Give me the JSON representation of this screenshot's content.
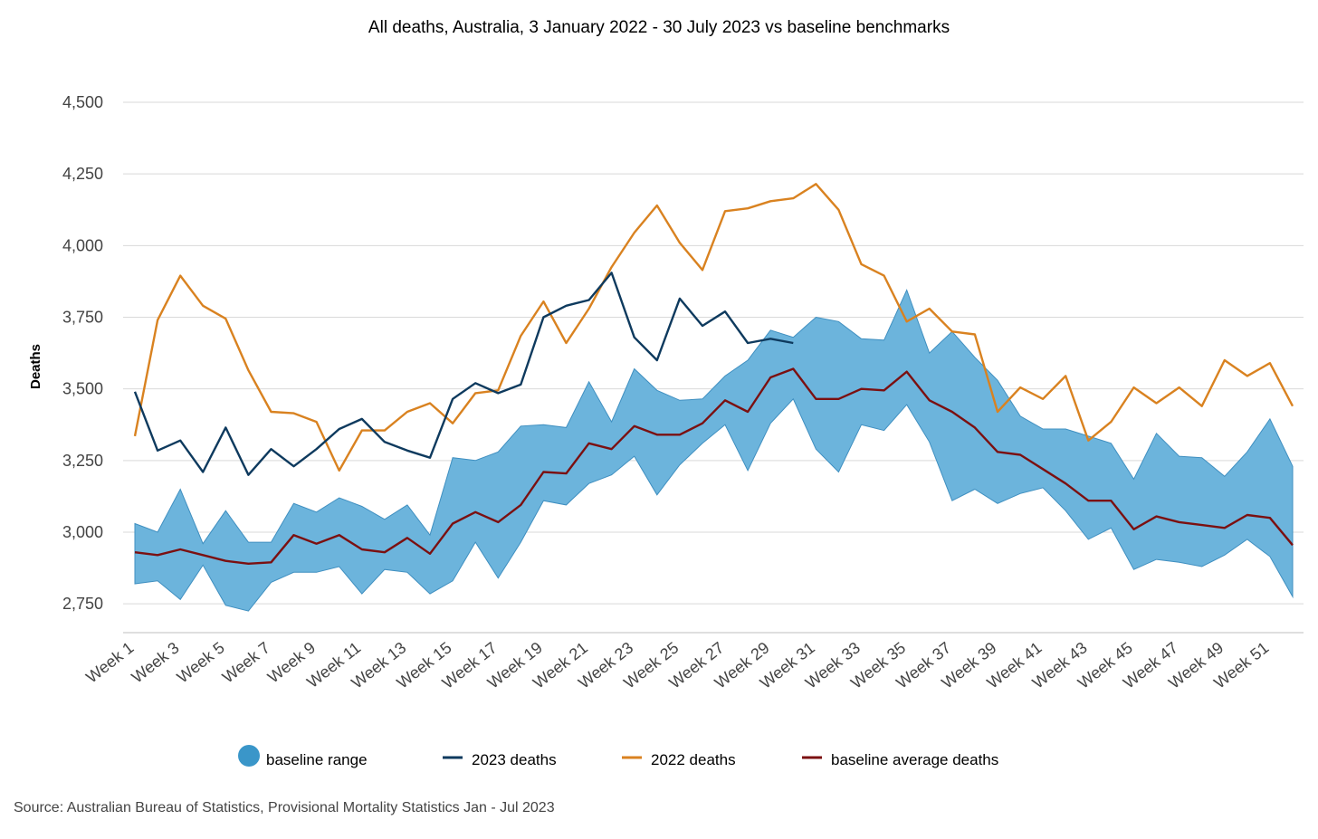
{
  "chart_data": {
    "type": "line",
    "title": "All deaths, Australia, 3 January 2022 - 30 July 2023 vs baseline benchmarks",
    "ylabel": "Deaths",
    "xlabel": "",
    "ylim": [
      2600,
      4600
    ],
    "yticks": [
      2750,
      3000,
      3250,
      3500,
      3750,
      4000,
      4250,
      4500
    ],
    "ytick_labels": [
      "2,750",
      "3,000",
      "3,250",
      "3,500",
      "3,750",
      "4,000",
      "4,250",
      "4,500"
    ],
    "x": [
      "Week 1",
      "Week 2",
      "Week 3",
      "Week 4",
      "Week 5",
      "Week 6",
      "Week 7",
      "Week 8",
      "Week 9",
      "Week 10",
      "Week 11",
      "Week 12",
      "Week 13",
      "Week 14",
      "Week 15",
      "Week 16",
      "Week 17",
      "Week 18",
      "Week 19",
      "Week 20",
      "Week 21",
      "Week 22",
      "Week 23",
      "Week 24",
      "Week 25",
      "Week 26",
      "Week 27",
      "Week 28",
      "Week 29",
      "Week 30",
      "Week 31",
      "Week 32",
      "Week 33",
      "Week 34",
      "Week 35",
      "Week 36",
      "Week 37",
      "Week 38",
      "Week 39",
      "Week 40",
      "Week 41",
      "Week 42",
      "Week 43",
      "Week 44",
      "Week 45",
      "Week 46",
      "Week 47",
      "Week 48",
      "Week 49",
      "Week 50",
      "Week 51",
      "Week 52"
    ],
    "xtick_labels": [
      "Week 1",
      "Week 3",
      "Week 5",
      "Week 7",
      "Week 9",
      "Week 11",
      "Week 13",
      "Week 15",
      "Week 17",
      "Week 19",
      "Week 21",
      "Week 23",
      "Week 25",
      "Week 27",
      "Week 29",
      "Week 31",
      "Week 33",
      "Week 35",
      "Week 37",
      "Week 39",
      "Week 41",
      "Week 43",
      "Week 45",
      "Week 47",
      "Week 49",
      "Week 51"
    ],
    "range": {
      "name": "baseline range",
      "color": "#6cb4dc",
      "lower": [
        2820,
        2830,
        2765,
        2885,
        2745,
        2725,
        2825,
        2860,
        2860,
        2880,
        2785,
        2870,
        2860,
        2785,
        2830,
        2965,
        2840,
        2965,
        3110,
        3095,
        3170,
        3200,
        3265,
        3130,
        3235,
        3310,
        3375,
        3215,
        3380,
        3465,
        3290,
        3210,
        3375,
        3355,
        3445,
        3315,
        3110,
        3150,
        3100,
        3135,
        3155,
        3075,
        2975,
        3015,
        2870,
        2905,
        2895,
        2880,
        2920,
        2975,
        2915,
        2775
      ],
      "upper": [
        3030,
        3000,
        3150,
        2960,
        3075,
        2965,
        2965,
        3100,
        3070,
        3120,
        3090,
        3045,
        3095,
        2990,
        3260,
        3250,
        3280,
        3370,
        3375,
        3365,
        3525,
        3385,
        3570,
        3495,
        3460,
        3465,
        3545,
        3600,
        3705,
        3680,
        3750,
        3735,
        3675,
        3670,
        3845,
        3625,
        3700,
        3610,
        3530,
        3405,
        3360,
        3360,
        3335,
        3310,
        3185,
        3345,
        3265,
        3260,
        3195,
        3280,
        3395,
        3230
      ]
    },
    "series": [
      {
        "name": "2023 deaths",
        "color": "#0e3a5e",
        "values": [
          3490,
          3285,
          3320,
          3210,
          3365,
          3200,
          3290,
          3230,
          3290,
          3360,
          3395,
          3315,
          3285,
          3260,
          3465,
          3520,
          3485,
          3515,
          3750,
          3790,
          3810,
          3905,
          3680,
          3600,
          3815,
          3720,
          3770,
          3660,
          3675,
          3660,
          null,
          null,
          null,
          null,
          null,
          null,
          null,
          null,
          null,
          null,
          null,
          null,
          null,
          null,
          null,
          null,
          null,
          null,
          null,
          null,
          null,
          null
        ]
      },
      {
        "name": "2022 deaths",
        "color": "#d98220",
        "values": [
          3335,
          3740,
          3895,
          3790,
          3745,
          3565,
          3420,
          3415,
          3385,
          3215,
          3355,
          3355,
          3420,
          3450,
          3380,
          3485,
          3495,
          3685,
          3805,
          3660,
          3780,
          3925,
          4045,
          4140,
          4010,
          3915,
          4120,
          4130,
          4155,
          4165,
          4215,
          4125,
          3935,
          3895,
          3735,
          3780,
          3700,
          3690,
          3420,
          3505,
          3465,
          3545,
          3320,
          3385,
          3505,
          3450,
          3505,
          3440,
          3600,
          3545,
          3590,
          3440
        ]
      },
      {
        "name": "baseline average deaths",
        "color": "#7b1011",
        "values": [
          2930,
          2920,
          2940,
          2920,
          2900,
          2890,
          2895,
          2990,
          2960,
          2990,
          2940,
          2930,
          2980,
          2925,
          3030,
          3070,
          3035,
          3095,
          3210,
          3205,
          3310,
          3290,
          3370,
          3340,
          3340,
          3380,
          3460,
          3420,
          3540,
          3570,
          3465,
          3465,
          3500,
          3495,
          3560,
          3460,
          3420,
          3365,
          3280,
          3270,
          3220,
          3170,
          3110,
          3110,
          3010,
          3055,
          3035,
          3025,
          3015,
          3060,
          3050,
          2955
        ]
      }
    ],
    "legend": {
      "placement": "bottom",
      "items": [
        {
          "label": "baseline range",
          "color": "#3a96c9",
          "marker": "circle"
        },
        {
          "label": "2023 deaths",
          "color": "#0e3a5e",
          "marker": "line"
        },
        {
          "label": "2022 deaths",
          "color": "#d98220",
          "marker": "line"
        },
        {
          "label": "baseline average deaths",
          "color": "#7b1011",
          "marker": "line"
        }
      ]
    },
    "grid": true,
    "source": "Source: Australian Bureau of Statistics, Provisional Mortality Statistics Jan - Jul 2023"
  }
}
